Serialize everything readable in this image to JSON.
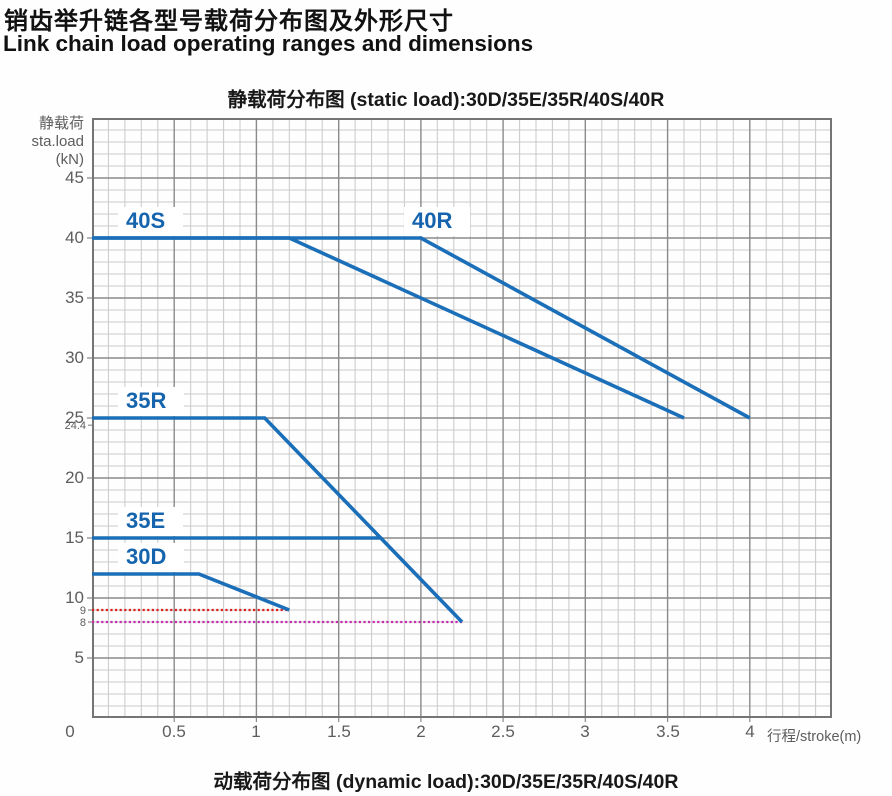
{
  "page": {
    "title_zh": "销齿举升链各型号载荷分布图及外形尺寸",
    "title_en": "Link chain load operating ranges and dimensions",
    "static_chart_title": "静载荷分布图  (static load):30D/35E/35R/40S/40R",
    "dynamic_chart_title": "动载荷分布图  (dynamic load):30D/35E/35R/40S/40R"
  },
  "chart_data": {
    "type": "line",
    "title": "静载荷分布图 (static load):30D/35E/35R/40S/40R",
    "xlabel": "行程/stroke(m)",
    "ylabel": "静载荷 sta.load (kN)",
    "ylabel_lines": [
      "静载荷",
      "sta.load",
      "(kN)"
    ],
    "xlim": [
      0,
      4.5
    ],
    "ylim": [
      0,
      50
    ],
    "x_major_step": 0.5,
    "x_minor_step": 0.1,
    "y_major_step": 5,
    "y_minor_step": 1,
    "grid": true,
    "x_ticks": [
      {
        "label": "0",
        "value": 0
      },
      {
        "label": "0.5",
        "value": 0.5
      },
      {
        "label": "1",
        "value": 1
      },
      {
        "label": "1.5",
        "value": 1.5
      },
      {
        "label": "2",
        "value": 2
      },
      {
        "label": "2.5",
        "value": 2.5
      },
      {
        "label": "3",
        "value": 3
      },
      {
        "label": "3.5",
        "value": 3.5
      },
      {
        "label": "4",
        "value": 4
      }
    ],
    "y_ticks": [
      {
        "label": "45",
        "value": 45
      },
      {
        "label": "40",
        "value": 40
      },
      {
        "label": "35",
        "value": 35
      },
      {
        "label": "30",
        "value": 30
      },
      {
        "label": "25",
        "value": 25
      },
      {
        "label": "20",
        "value": 20
      },
      {
        "label": "15",
        "value": 15
      },
      {
        "label": "10",
        "value": 10
      },
      {
        "label": "5",
        "value": 5
      }
    ],
    "y_extra_ticks": [
      {
        "label": "24.4",
        "value": 24.4
      },
      {
        "label": "9",
        "value": 9
      },
      {
        "label": "8",
        "value": 8
      }
    ],
    "colors": {
      "series_line": "#1b6fb8",
      "series_label_text": "#1564ad",
      "grid_minor": "#c9c9c9",
      "grid_major": "#8a8a8a",
      "border": "#757575",
      "axis_text": "#5d5d5d",
      "ref_9": "#e02020",
      "ref_8": "#c52cae"
    },
    "series": [
      {
        "name": "40S",
        "points": [
          [
            0,
            40
          ],
          [
            1.2,
            40
          ],
          [
            3.6,
            25
          ]
        ],
        "label_at": [
          0.158,
          40
        ]
      },
      {
        "name": "40R",
        "points": [
          [
            0,
            40
          ],
          [
            2.0,
            40
          ],
          [
            4.0,
            25
          ]
        ],
        "label_at": [
          1.9,
          40
        ]
      },
      {
        "name": "35R",
        "points": [
          [
            0,
            25
          ],
          [
            1.05,
            25
          ],
          [
            2.25,
            8
          ]
        ],
        "label_at": [
          0.158,
          25
        ]
      },
      {
        "name": "35E",
        "points": [
          [
            0,
            15
          ],
          [
            1.75,
            15
          ]
        ],
        "label_at": [
          0.158,
          15
        ],
        "note": "horizontal segment ends on the 35R descending line"
      },
      {
        "name": "30D",
        "points": [
          [
            0,
            12
          ],
          [
            0.65,
            12
          ],
          [
            1.2,
            9
          ]
        ],
        "label_at": [
          0.158,
          12
        ]
      }
    ],
    "reference_lines": [
      {
        "value": 9,
        "x_start": 0,
        "x_end": 1.2,
        "color": "#e02020",
        "style": "dotted"
      },
      {
        "value": 8,
        "x_start": 0,
        "x_end": 2.25,
        "color": "#c52cae",
        "style": "dotted"
      }
    ]
  }
}
